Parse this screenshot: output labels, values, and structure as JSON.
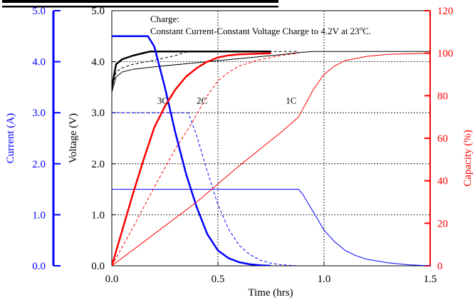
{
  "chart_data": {
    "type": "line",
    "annotation": {
      "line1": "Charge:",
      "line2_pre": "Constant Current-Constant Voltage Charge to 4.2V at 23",
      "line2_sup": "o",
      "line2_post": "C."
    },
    "x_axis": {
      "label": "Time (hrs)",
      "range": [
        0,
        1.5
      ],
      "ticks": [
        "0.0",
        "0.5",
        "1.0",
        "1.5"
      ]
    },
    "voltage_axis": {
      "label": "Voltage (V)",
      "range": [
        0,
        5
      ],
      "ticks": [
        "0.0",
        "1.0",
        "2.0",
        "3.0",
        "4.0",
        "5.0"
      ]
    },
    "current_axis": {
      "label": "Current (A)",
      "range": [
        0,
        5
      ],
      "ticks": [
        "0.0",
        "1.0",
        "2.0",
        "3.0",
        "4.0",
        "5.0"
      ]
    },
    "capacity_axis": {
      "label": "Capacity (%)",
      "range": [
        0,
        120
      ],
      "ticks": [
        "0",
        "20",
        "40",
        "60",
        "80",
        "100",
        "120"
      ]
    },
    "grid": true,
    "colors": {
      "voltage": "#000000",
      "current": "#0000ff",
      "capacity": "#ff0000"
    },
    "series": [
      {
        "name": "3C",
        "axis": "voltage",
        "style": "solid-bold",
        "x": [
          0,
          0.02,
          0.05,
          0.1,
          0.15,
          0.18,
          0.22,
          0.3,
          0.4,
          0.5,
          0.6,
          0.75
        ],
        "y": [
          3.5,
          3.95,
          4.05,
          4.12,
          4.17,
          4.2,
          4.2,
          4.2,
          4.2,
          4.2,
          4.2,
          4.2
        ]
      },
      {
        "name": "2C",
        "axis": "voltage",
        "style": "dashed",
        "x": [
          0,
          0.02,
          0.05,
          0.1,
          0.2,
          0.3,
          0.35,
          0.4,
          0.5,
          0.6,
          0.75,
          0.88
        ],
        "y": [
          3.45,
          3.8,
          3.88,
          3.95,
          4.03,
          4.12,
          4.19,
          4.2,
          4.2,
          4.2,
          4.2,
          4.2
        ]
      },
      {
        "name": "1C",
        "axis": "voltage",
        "style": "solid-thin",
        "x": [
          0,
          0.02,
          0.05,
          0.1,
          0.2,
          0.4,
          0.6,
          0.8,
          0.88,
          0.95,
          1.2,
          1.5
        ],
        "y": [
          3.4,
          3.7,
          3.8,
          3.85,
          3.9,
          3.98,
          4.06,
          4.14,
          4.18,
          4.2,
          4.2,
          4.2
        ]
      },
      {
        "name": "3C",
        "axis": "current",
        "style": "solid-bold",
        "x": [
          0,
          0.17,
          0.2,
          0.25,
          0.3,
          0.35,
          0.4,
          0.45,
          0.5,
          0.55,
          0.6,
          0.65,
          0.7,
          0.75
        ],
        "y": [
          4.5,
          4.5,
          4.3,
          3.5,
          2.6,
          1.8,
          1.15,
          0.62,
          0.3,
          0.15,
          0.07,
          0.03,
          0.01,
          0.0
        ]
      },
      {
        "name": "2C",
        "axis": "current",
        "style": "dashed",
        "x": [
          0,
          0.36,
          0.4,
          0.45,
          0.5,
          0.55,
          0.6,
          0.65,
          0.7,
          0.75,
          0.8,
          0.88
        ],
        "y": [
          3.0,
          3.0,
          2.55,
          1.85,
          1.2,
          0.72,
          0.4,
          0.22,
          0.11,
          0.05,
          0.02,
          0.0
        ]
      },
      {
        "name": "1C",
        "axis": "current",
        "style": "solid-thin",
        "x": [
          0,
          0.88,
          0.9,
          0.95,
          1.0,
          1.05,
          1.1,
          1.15,
          1.2,
          1.3,
          1.4,
          1.5
        ],
        "y": [
          1.5,
          1.5,
          1.4,
          1.05,
          0.7,
          0.47,
          0.3,
          0.2,
          0.13,
          0.06,
          0.02,
          0.0
        ]
      },
      {
        "name": "3C",
        "axis": "capacity",
        "style": "solid-bold",
        "x": [
          0,
          0.05,
          0.1,
          0.15,
          0.2,
          0.25,
          0.3,
          0.35,
          0.4,
          0.45,
          0.5,
          0.55,
          0.6,
          0.75
        ],
        "y": [
          0,
          17,
          34,
          50,
          65,
          75,
          83,
          89,
          93,
          96,
          98,
          99,
          99.5,
          100
        ]
      },
      {
        "name": "2C",
        "axis": "capacity",
        "style": "dashed",
        "x": [
          0,
          0.1,
          0.2,
          0.3,
          0.37,
          0.45,
          0.5,
          0.55,
          0.6,
          0.7,
          0.8,
          0.88
        ],
        "y": [
          0,
          18,
          37,
          55,
          66,
          80,
          87,
          91,
          94,
          97,
          99,
          100
        ]
      },
      {
        "name": "1C",
        "axis": "capacity",
        "style": "solid-thin",
        "x": [
          0,
          0.2,
          0.4,
          0.6,
          0.8,
          0.88,
          0.95,
          1.0,
          1.05,
          1.1,
          1.2,
          1.3,
          1.5
        ],
        "y": [
          0,
          15,
          30,
          47,
          63,
          70,
          83,
          90,
          94,
          96.5,
          98.5,
          99.5,
          100
        ]
      }
    ],
    "curve_labels": [
      {
        "text": "3C",
        "x": 0.24,
        "v": 3.25
      },
      {
        "text": "2C",
        "x": 0.425,
        "v": 3.25
      },
      {
        "text": "1C",
        "x": 0.845,
        "v": 3.25
      }
    ]
  }
}
